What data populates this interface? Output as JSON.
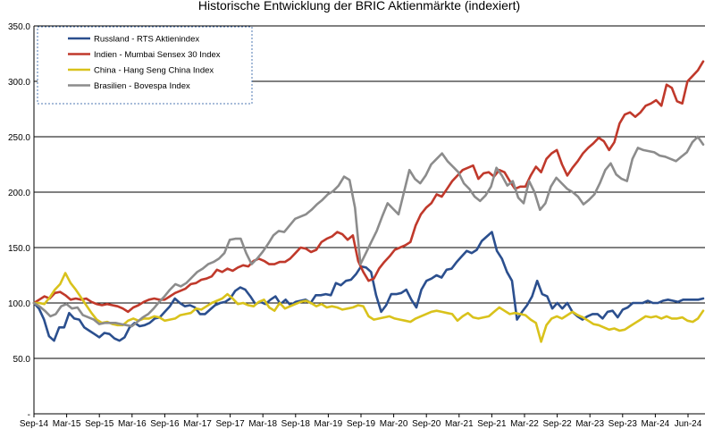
{
  "chart_data": {
    "type": "line",
    "title": "Historische Entwicklung der BRIC Aktienmärkte (indexiert)",
    "xlabel": "",
    "ylabel": "",
    "ylim": [
      0,
      350
    ],
    "yticks": [
      "-",
      "50.0",
      "100.0",
      "150.0",
      "200.0",
      "250.0",
      "300.0",
      "350.0"
    ],
    "x_tick_labels": [
      "Sep-14",
      "Mar-15",
      "Sep-15",
      "Mar-16",
      "Sep-16",
      "Mar-17",
      "Sep-17",
      "Mar-18",
      "Sep-18",
      "Mar-19",
      "Sep-19",
      "Mar-20",
      "Sep-20",
      "Mar-21",
      "Sep-21",
      "Mar-22",
      "Sep-22",
      "Mar-23",
      "Sep-23",
      "Mar-24",
      "Jun-24"
    ],
    "x_start": "2014-09",
    "x_end": "2024-09",
    "grid": true,
    "legend_position": "top-left",
    "series": [
      {
        "name": "Russland - RTS Aktienindex",
        "color": "#2b4f8e",
        "values": [
          100,
          95,
          85,
          70,
          66,
          78,
          78,
          91,
          86,
          85,
          78,
          75,
          72,
          69,
          73,
          72,
          68,
          66,
          69,
          78,
          82,
          79,
          80,
          82,
          86,
          87,
          92,
          97,
          104,
          100,
          97,
          98,
          96,
          90,
          90,
          94,
          98,
          100,
          101,
          104,
          111,
          114,
          112,
          106,
          99,
          101,
          99,
          103,
          106,
          99,
          103,
          98,
          101,
          102,
          103,
          100,
          107,
          107,
          108,
          107,
          118,
          116,
          120,
          121,
          126,
          133,
          132,
          128,
          107,
          92,
          98,
          108,
          108,
          109,
          112,
          103,
          96,
          112,
          120,
          122,
          125,
          123,
          130,
          131,
          137,
          142,
          147,
          145,
          148,
          156,
          160,
          164,
          147,
          140,
          128,
          120,
          85,
          92,
          98,
          106,
          120,
          108,
          106,
          95,
          100,
          95,
          100,
          92,
          88,
          85,
          88,
          90,
          90,
          86,
          92,
          93,
          87,
          94,
          96,
          100,
          100,
          100,
          102,
          100,
          100,
          102,
          103,
          102,
          101,
          103,
          103,
          103,
          103,
          104
        ],
        "note": "approximate visual reading"
      },
      {
        "name": "Indien - Mumbai Sensex 30 Index",
        "color": "#c0392b",
        "values": [
          100,
          103,
          106,
          104,
          109,
          110,
          107,
          103,
          104,
          103,
          104,
          101,
          99,
          98,
          99,
          98,
          97,
          95,
          92,
          96,
          98,
          101,
          103,
          104,
          103,
          103,
          106,
          109,
          111,
          113,
          117,
          118,
          121,
          122,
          124,
          130,
          128,
          131,
          129,
          132,
          134,
          133,
          138,
          140,
          138,
          135,
          135,
          137,
          137,
          140,
          145,
          150,
          149,
          146,
          148,
          155,
          158,
          160,
          164,
          162,
          157,
          161,
          138,
          128,
          120,
          122,
          131,
          137,
          142,
          148,
          150,
          152,
          155,
          170,
          180,
          186,
          190,
          198,
          196,
          203,
          210,
          215,
          220,
          222,
          224,
          212,
          217,
          218,
          214,
          220,
          218,
          210,
          203,
          205,
          205,
          215,
          223,
          218,
          230,
          235,
          238,
          225,
          215,
          222,
          228,
          235,
          240,
          244,
          249,
          246,
          238,
          245,
          262,
          270,
          272,
          268,
          272,
          278,
          280,
          283,
          278,
          297,
          294,
          282,
          280,
          300,
          305,
          310,
          318
        ],
        "note": "approximate visual reading"
      },
      {
        "name": "China - Hang Seng China Index",
        "color": "#d9c21b",
        "values": [
          100,
          100,
          99,
          105,
          112,
          117,
          127,
          118,
          112,
          105,
          98,
          91,
          85,
          82,
          83,
          81,
          80,
          80,
          84,
          86,
          84,
          86,
          86,
          88,
          87,
          84,
          85,
          86,
          89,
          90,
          91,
          95,
          94,
          97,
          100,
          102,
          104,
          108,
          104,
          99,
          100,
          98,
          97,
          101,
          103,
          96,
          93,
          100,
          95,
          97,
          99,
          101,
          102,
          100,
          97,
          99,
          96,
          97,
          96,
          94,
          95,
          96,
          98,
          97,
          88,
          85,
          86,
          87,
          88,
          86,
          85,
          84,
          83,
          86,
          88,
          90,
          92,
          93,
          92,
          91,
          90,
          84,
          88,
          91,
          87,
          86,
          87,
          88,
          92,
          96,
          93,
          90,
          91,
          90,
          89,
          85,
          82,
          65,
          80,
          86,
          88,
          86,
          89,
          92,
          89,
          87,
          84,
          81,
          80,
          78,
          76,
          77,
          75,
          76,
          79,
          82,
          85,
          88,
          87,
          88,
          86,
          88,
          86,
          86,
          87,
          84,
          83,
          86,
          93
        ],
        "note": "approximate visual reading"
      },
      {
        "name": "Brasilien - Bovespa Index",
        "color": "#8c8c8c",
        "values": [
          100,
          97,
          93,
          88,
          90,
          97,
          99,
          95,
          96,
          89,
          87,
          85,
          81,
          82,
          82,
          82,
          81,
          80,
          79,
          83,
          87,
          90,
          95,
          101,
          106,
          112,
          117,
          115,
          118,
          123,
          128,
          131,
          135,
          137,
          140,
          145,
          157,
          158,
          158,
          145,
          135,
          140,
          146,
          153,
          161,
          165,
          164,
          170,
          176,
          178,
          180,
          184,
          189,
          193,
          198,
          201,
          206,
          214,
          211,
          186,
          135,
          145,
          155,
          165,
          178,
          190,
          185,
          180,
          200,
          220,
          212,
          208,
          215,
          225,
          230,
          235,
          228,
          223,
          218,
          208,
          203,
          196,
          192,
          197,
          205,
          222,
          215,
          206,
          210,
          195,
          190,
          210,
          200,
          184,
          190,
          205,
          213,
          208,
          203,
          200,
          196,
          189,
          193,
          198,
          208,
          220,
          226,
          216,
          212,
          210,
          230,
          240,
          238,
          237,
          236,
          233,
          232,
          230,
          228,
          232,
          236,
          245,
          250,
          243
        ],
        "note": "approximate visual reading"
      }
    ]
  }
}
